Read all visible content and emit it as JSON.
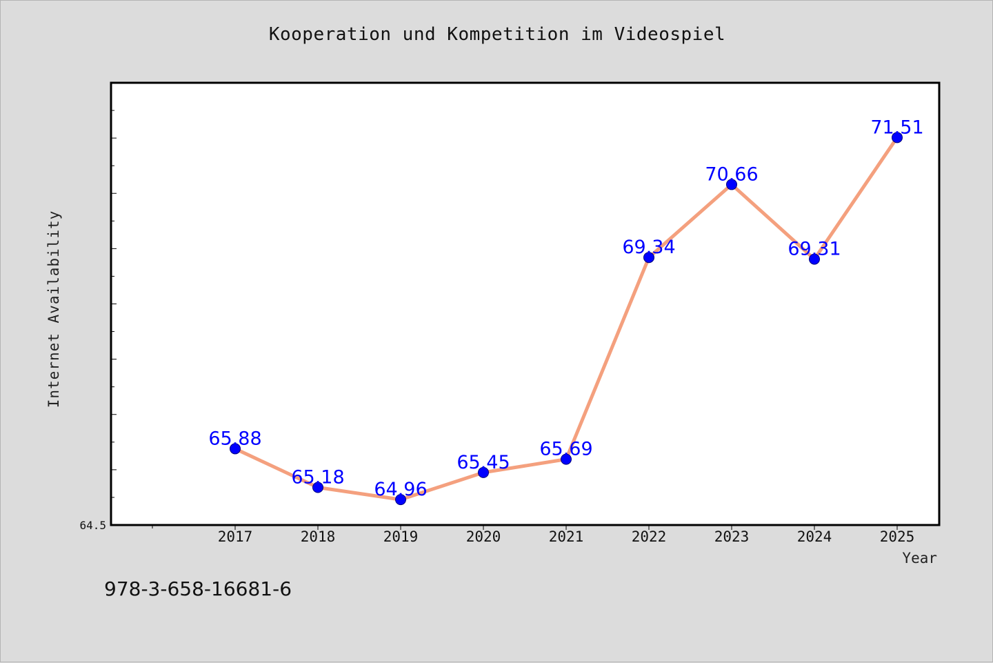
{
  "chart_data": {
    "type": "line",
    "title": "Kooperation und Kompetition im Videospiel",
    "xlabel": "Year",
    "ylabel": "Internet Availability",
    "categories": [
      "2017",
      "2018",
      "2019",
      "2020",
      "2021",
      "2022",
      "2023",
      "2024",
      "2025"
    ],
    "series": [
      {
        "values": [
          65.88,
          65.18,
          64.96,
          65.45,
          65.69,
          69.34,
          70.66,
          69.31,
          71.51
        ],
        "labels": [
          "65.88",
          "65.18",
          "64.96",
          "65.45",
          "65.69",
          "69.34",
          "70.66",
          "69.31",
          "71.51"
        ]
      }
    ],
    "ylim": [
      64.5,
      72.5
    ],
    "y_tick_label": "64.5",
    "grid": false,
    "line_color": "#f4a07e",
    "marker_color": "#0000ff",
    "label_color": "#0000ff"
  },
  "footer": {
    "code": "978-3-658-16681-6"
  },
  "colors": {
    "background": "#dcdcdc",
    "plot_background": "#ffffff",
    "axis": "#000000"
  }
}
